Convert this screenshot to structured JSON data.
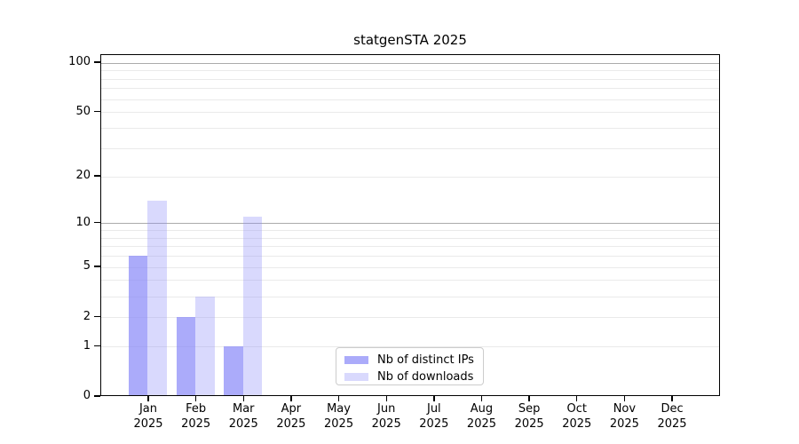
{
  "page_title": "statgenSTA 2025",
  "chart_data": {
    "type": "bar",
    "title": "statgenSTA 2025",
    "x": {
      "months": [
        "Jan",
        "Feb",
        "Mar",
        "Apr",
        "May",
        "Jun",
        "Jul",
        "Aug",
        "Sep",
        "Oct",
        "Nov",
        "Dec"
      ],
      "year": "2025"
    },
    "series": [
      {
        "name": "Nb of distinct IPs",
        "color": "rgba(136,136,248,0.70)",
        "values": [
          6,
          2,
          1,
          0,
          0,
          0,
          0,
          0,
          0,
          0,
          0,
          0
        ]
      },
      {
        "name": "Nb of downloads",
        "color": "rgba(136,136,248,0.32)",
        "values": [
          14,
          3,
          11,
          0,
          0,
          0,
          0,
          0,
          0,
          0,
          0,
          0
        ]
      }
    ],
    "yscale": "log10(1+x)",
    "ylim": [
      0,
      112
    ],
    "yticks": [
      0,
      1,
      2,
      5,
      10,
      20,
      50,
      100
    ],
    "gridlines": {
      "minor": [
        1,
        2,
        3,
        4,
        5,
        6,
        7,
        8,
        9,
        20,
        30,
        40,
        50,
        60,
        70,
        80,
        90
      ],
      "major": [
        10,
        100
      ]
    },
    "legend_position": "lower center",
    "colors": {
      "bar_distinct_ips": "#ababfa",
      "bar_downloads": "#dadafa",
      "minor_grid": "#eaeaea",
      "major_grid": "#ababab",
      "spine": "#000000",
      "background": "#ffffff"
    }
  }
}
